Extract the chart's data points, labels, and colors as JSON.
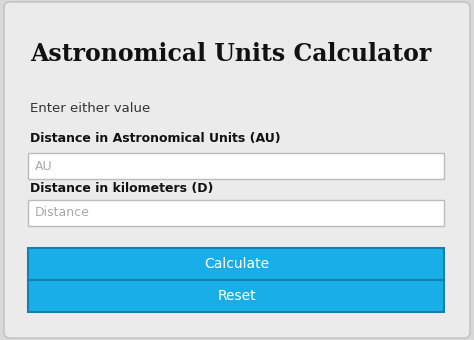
{
  "bg_color": "#d8d8d8",
  "card_color": "#ebebeb",
  "title": "Astronomical Units Calculator",
  "subtitle": "Enter either value",
  "label1": "Distance in Astronomical Units (AU)",
  "placeholder1": "AU",
  "label2": "Distance in kilometers (D)",
  "placeholder2": "Distance",
  "btn1_text": "Calculate",
  "btn2_text": "Reset",
  "btn_color": "#1aaee8",
  "btn_border": "#1580b0",
  "btn_text_color": "#ffffff",
  "input_bg": "#ffffff",
  "input_border": "#bbbbbb",
  "placeholder_color": "#aaaaaa",
  "title_color": "#111111",
  "label_color": "#111111",
  "subtitle_color": "#333333",
  "card_edge": "#c0c0c0"
}
